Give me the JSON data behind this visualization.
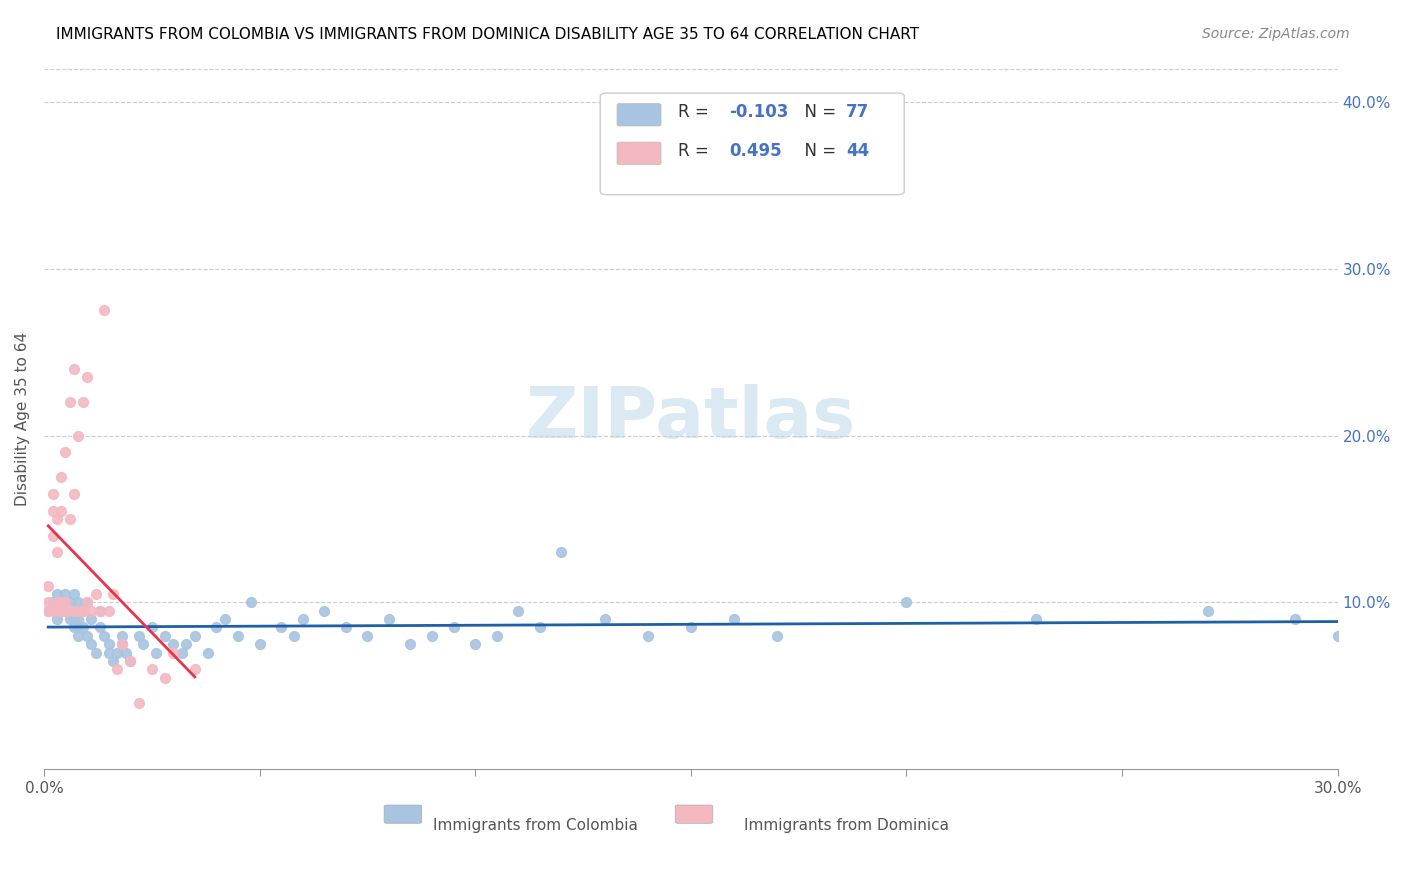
{
  "title": "IMMIGRANTS FROM COLOMBIA VS IMMIGRANTS FROM DOMINICA DISABILITY AGE 35 TO 64 CORRELATION CHART",
  "source": "Source: ZipAtlas.com",
  "xlabel": "",
  "ylabel": "Disability Age 35 to 64",
  "xlim": [
    0.0,
    0.3
  ],
  "ylim": [
    0.0,
    0.42
  ],
  "x_ticks": [
    0.0,
    0.05,
    0.1,
    0.15,
    0.2,
    0.25,
    0.3
  ],
  "x_tick_labels": [
    "0.0%",
    "",
    "",
    "",
    "",
    "",
    "30.0%"
  ],
  "y_ticks_right": [
    0.1,
    0.2,
    0.3,
    0.4
  ],
  "y_tick_labels_right": [
    "10.0%",
    "20.0%",
    "30.0%",
    "40.0%"
  ],
  "colombia_color": "#a8c4e0",
  "dominica_color": "#f4b8c1",
  "colombia_line_color": "#1f5fa6",
  "dominica_line_color": "#e8334a",
  "legend_R_colombia": "-0.103",
  "legend_N_colombia": "77",
  "legend_R_dominica": "0.495",
  "legend_N_dominica": "44",
  "watermark": "ZIPatlas",
  "colombia_x": [
    0.001,
    0.002,
    0.003,
    0.003,
    0.004,
    0.004,
    0.005,
    0.005,
    0.005,
    0.006,
    0.006,
    0.006,
    0.007,
    0.007,
    0.007,
    0.008,
    0.008,
    0.008,
    0.008,
    0.009,
    0.009,
    0.01,
    0.01,
    0.011,
    0.011,
    0.012,
    0.013,
    0.013,
    0.014,
    0.015,
    0.015,
    0.016,
    0.017,
    0.018,
    0.018,
    0.019,
    0.02,
    0.022,
    0.023,
    0.025,
    0.026,
    0.028,
    0.03,
    0.032,
    0.033,
    0.035,
    0.038,
    0.04,
    0.042,
    0.045,
    0.048,
    0.05,
    0.055,
    0.058,
    0.06,
    0.065,
    0.07,
    0.075,
    0.08,
    0.085,
    0.09,
    0.095,
    0.1,
    0.105,
    0.11,
    0.115,
    0.12,
    0.13,
    0.14,
    0.15,
    0.16,
    0.17,
    0.2,
    0.23,
    0.27,
    0.29,
    0.3
  ],
  "colombia_y": [
    0.095,
    0.1,
    0.09,
    0.105,
    0.095,
    0.1,
    0.095,
    0.1,
    0.105,
    0.09,
    0.095,
    0.1,
    0.085,
    0.09,
    0.105,
    0.08,
    0.085,
    0.09,
    0.1,
    0.085,
    0.095,
    0.08,
    0.1,
    0.075,
    0.09,
    0.07,
    0.085,
    0.095,
    0.08,
    0.07,
    0.075,
    0.065,
    0.07,
    0.075,
    0.08,
    0.07,
    0.065,
    0.08,
    0.075,
    0.085,
    0.07,
    0.08,
    0.075,
    0.07,
    0.075,
    0.08,
    0.07,
    0.085,
    0.09,
    0.08,
    0.1,
    0.075,
    0.085,
    0.08,
    0.09,
    0.095,
    0.085,
    0.08,
    0.09,
    0.075,
    0.08,
    0.085,
    0.075,
    0.08,
    0.095,
    0.085,
    0.13,
    0.09,
    0.08,
    0.085,
    0.09,
    0.08,
    0.1,
    0.09,
    0.095,
    0.09,
    0.08
  ],
  "dominica_x": [
    0.001,
    0.001,
    0.001,
    0.002,
    0.002,
    0.002,
    0.002,
    0.003,
    0.003,
    0.003,
    0.003,
    0.004,
    0.004,
    0.004,
    0.004,
    0.005,
    0.005,
    0.005,
    0.006,
    0.006,
    0.006,
    0.007,
    0.007,
    0.007,
    0.008,
    0.008,
    0.009,
    0.009,
    0.01,
    0.01,
    0.011,
    0.012,
    0.013,
    0.014,
    0.015,
    0.016,
    0.017,
    0.018,
    0.02,
    0.022,
    0.025,
    0.028,
    0.03,
    0.035
  ],
  "dominica_y": [
    0.095,
    0.1,
    0.11,
    0.095,
    0.14,
    0.155,
    0.165,
    0.095,
    0.1,
    0.13,
    0.15,
    0.095,
    0.1,
    0.155,
    0.175,
    0.095,
    0.1,
    0.19,
    0.095,
    0.15,
    0.22,
    0.095,
    0.165,
    0.24,
    0.095,
    0.2,
    0.095,
    0.22,
    0.1,
    0.235,
    0.095,
    0.105,
    0.095,
    0.275,
    0.095,
    0.105,
    0.06,
    0.075,
    0.065,
    0.04,
    0.06,
    0.055,
    0.07,
    0.06
  ]
}
